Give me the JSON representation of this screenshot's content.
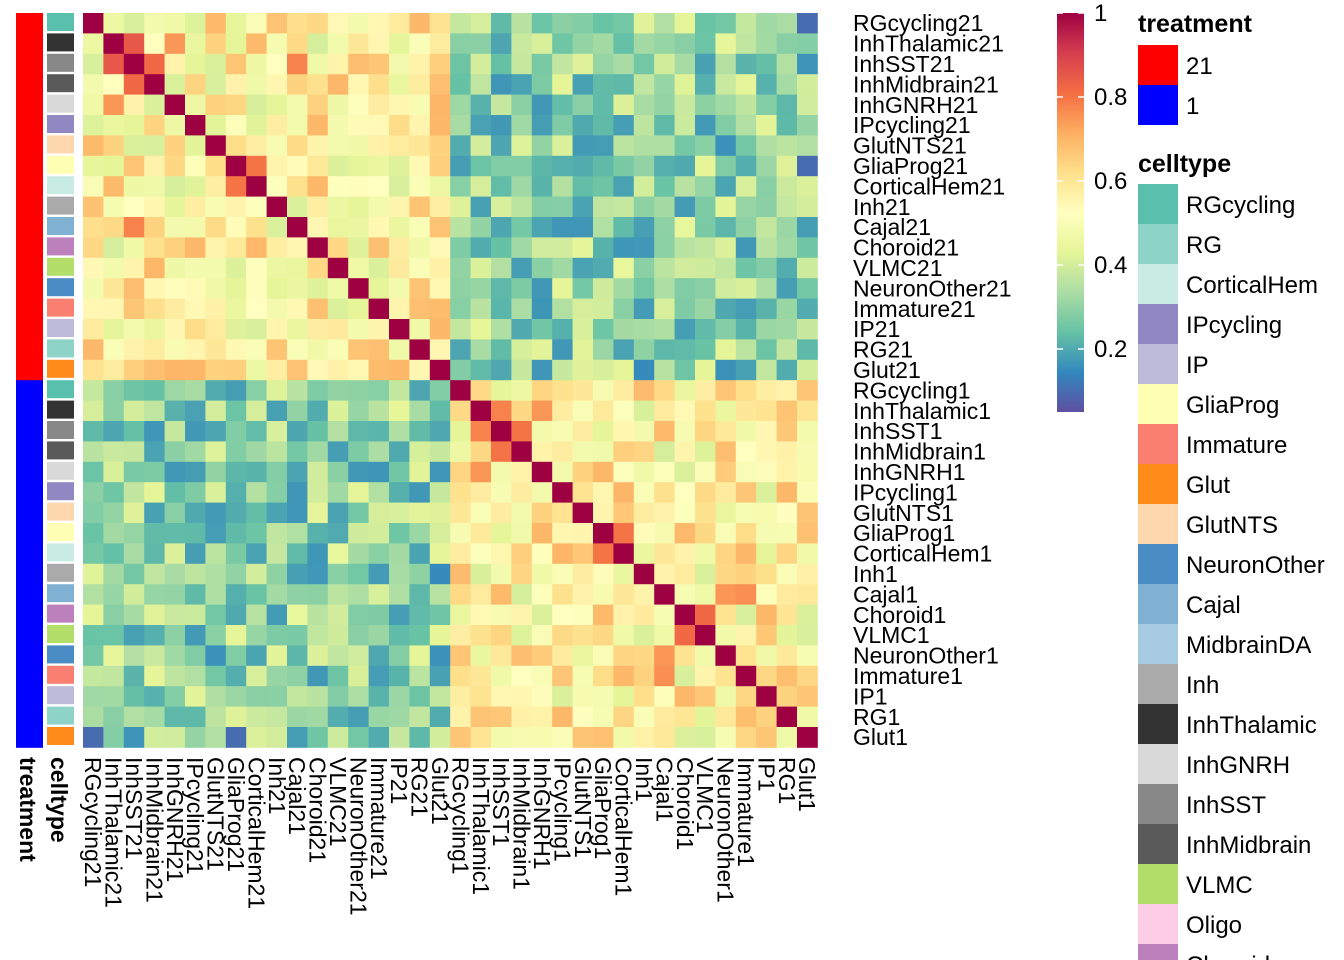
{
  "chart_data": {
    "type": "heatmap",
    "labels": [
      "RGcycling21",
      "InhThalamic21",
      "InhSST21",
      "InhMidbrain21",
      "InhGNRH21",
      "IPcycling21",
      "GlutNTS21",
      "GliaProg21",
      "CorticalHem21",
      "Inh21",
      "Cajal21",
      "Choroid21",
      "VLMC21",
      "NeuronOther21",
      "Immature21",
      "IP21",
      "RG21",
      "Glut21",
      "RGcycling1",
      "InhThalamic1",
      "InhSST1",
      "InhMidbrain1",
      "InhGNRH1",
      "IPcycling1",
      "GlutNTS1",
      "GliaProg1",
      "CorticalHem1",
      "Inh1",
      "Cajal1",
      "Choroid1",
      "VLMC1",
      "NeuronOther1",
      "Immature1",
      "IP1",
      "RG1",
      "Glut1"
    ],
    "row_celltype": [
      "RGcycling",
      "InhThalamic",
      "InhSST",
      "InhMidbrain",
      "InhGNRH",
      "IPcycling",
      "GlutNTS",
      "GliaProg",
      "CorticalHem",
      "Inh",
      "Cajal",
      "Choroid",
      "VLMC",
      "NeuronOther",
      "Immature",
      "IP",
      "RG",
      "Glut",
      "RGcycling",
      "InhThalamic",
      "InhSST",
      "InhMidbrain",
      "InhGNRH",
      "IPcycling",
      "GlutNTS",
      "GliaProg",
      "CorticalHem",
      "Inh",
      "Cajal",
      "Choroid",
      "VLMC",
      "NeuronOther",
      "Immature",
      "IP",
      "RG",
      "Glut"
    ],
    "row_treatment": [
      "21",
      "21",
      "21",
      "21",
      "21",
      "21",
      "21",
      "21",
      "21",
      "21",
      "21",
      "21",
      "21",
      "21",
      "21",
      "21",
      "21",
      "21",
      "1",
      "1",
      "1",
      "1",
      "1",
      "1",
      "1",
      "1",
      "1",
      "1",
      "1",
      "1",
      "1",
      "1",
      "1",
      "1",
      "1",
      "1"
    ],
    "groups": [
      {
        "name": "21",
        "start": 0,
        "end": 17
      },
      {
        "name": "1",
        "start": 18,
        "end": 35
      }
    ],
    "block_values": {
      "within_21": 0.55,
      "within_1": 0.55,
      "between": 0.3,
      "diagonal": 1
    },
    "highlights": [
      {
        "row": "InhSST21",
        "col": "InhThalamic21",
        "value": 0.85
      },
      {
        "row": "InhSST21",
        "col": "InhMidbrain21",
        "value": 0.82
      },
      {
        "row": "InhThalamic21",
        "col": "InhGNRH21",
        "value": 0.75
      },
      {
        "row": "GliaProg21",
        "col": "CorticalHem21",
        "value": 0.8
      },
      {
        "row": "Cajal21",
        "col": "InhSST21",
        "value": 0.78
      },
      {
        "row": "InhSST1",
        "col": "InhThalamic1",
        "value": 0.78
      },
      {
        "row": "InhSST1",
        "col": "InhMidbrain1",
        "value": 0.8
      },
      {
        "row": "InhGNRH1",
        "col": "InhThalamic1",
        "value": 0.75
      },
      {
        "row": "GliaProg1",
        "col": "CorticalHem1",
        "value": 0.8
      },
      {
        "row": "Choroid1",
        "col": "VLMC1",
        "value": 0.82
      },
      {
        "row": "Cajal1",
        "col": "NeuronOther1",
        "value": 0.75
      },
      {
        "row": "Cajal1",
        "col": "Immature1",
        "value": 0.76
      },
      {
        "row": "Glut1",
        "col": "RGcycling21",
        "value": 0.1
      },
      {
        "row": "Glut1",
        "col": "GliaProg21",
        "value": 0.1
      },
      {
        "row": "Glut21",
        "col": "Inh1",
        "value": 0.15
      }
    ],
    "color_scale": {
      "min": 0.05,
      "max": 1,
      "ticks": [
        0.2,
        0.4,
        0.6,
        0.8,
        1
      ],
      "colors": [
        "#5E4FA2",
        "#3288BD",
        "#66C2A5",
        "#ABDDA4",
        "#E6F598",
        "#FFFFBF",
        "#FEE08B",
        "#FDAE61",
        "#F46D43",
        "#D53E4F",
        "#9E0142"
      ]
    },
    "treatment_legend": {
      "title": "treatment",
      "items": [
        {
          "label": "21",
          "color": "#FF0000"
        },
        {
          "label": "1",
          "color": "#0000FF"
        }
      ]
    },
    "celltype_legend": {
      "title": "celltype",
      "items": [
        {
          "label": "RGcycling",
          "color": "#5AC0AE"
        },
        {
          "label": "RG",
          "color": "#8DD3C7"
        },
        {
          "label": "CorticalHem",
          "color": "#C8EBE3"
        },
        {
          "label": "IPcycling",
          "color": "#9188C3"
        },
        {
          "label": "IP",
          "color": "#BEBADA"
        },
        {
          "label": "GliaProg",
          "color": "#FFFFB3"
        },
        {
          "label": "Immature",
          "color": "#FB8072"
        },
        {
          "label": "Glut",
          "color": "#FF8C1A"
        },
        {
          "label": "GlutNTS",
          "color": "#FDD7AE"
        },
        {
          "label": "NeuronOther",
          "color": "#4A8CC4"
        },
        {
          "label": "Cajal",
          "color": "#80B1D3"
        },
        {
          "label": "MidbrainDA",
          "color": "#A6CBE3"
        },
        {
          "label": "Inh",
          "color": "#AAAAAA"
        },
        {
          "label": "InhThalamic",
          "color": "#333333"
        },
        {
          "label": "InhGNRH",
          "color": "#D9D9D9"
        },
        {
          "label": "InhSST",
          "color": "#888888"
        },
        {
          "label": "InhMidbrain",
          "color": "#5A5A5A"
        },
        {
          "label": "VLMC",
          "color": "#B3DE69"
        },
        {
          "label": "Oligo",
          "color": "#FCCDE5"
        },
        {
          "label": "Choroid",
          "color": "#BC80BD"
        }
      ]
    },
    "annotation_labels": {
      "treatment": "treatment",
      "celltype": "celltype"
    }
  }
}
